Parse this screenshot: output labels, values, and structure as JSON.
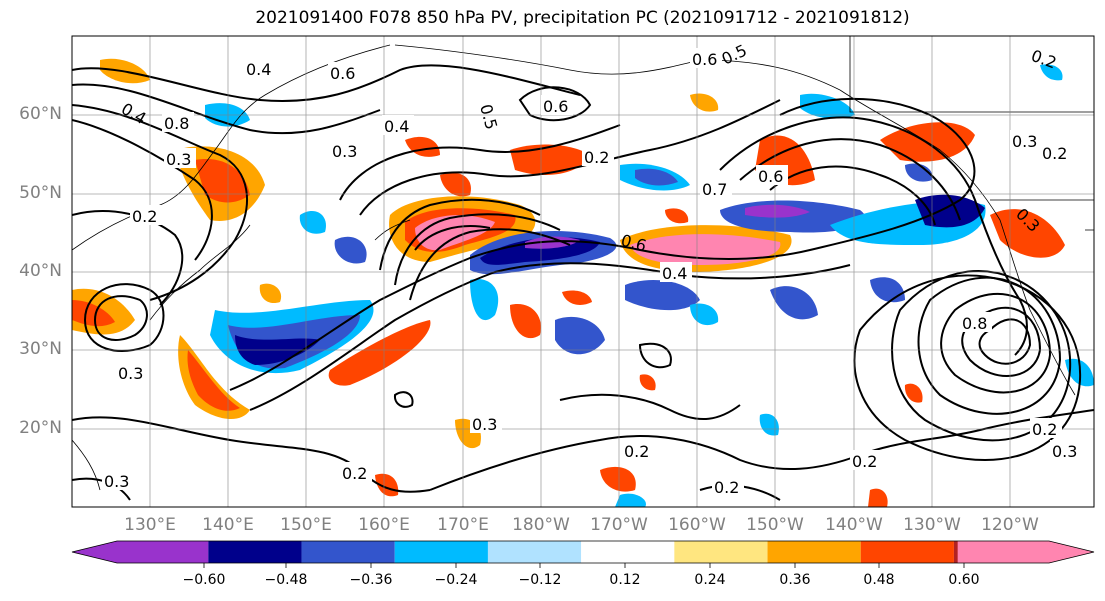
{
  "title": "2021091400 F078 850 hPa PV, precipitation PC (2021091712 - 2021091812)",
  "lat_labels": [
    "60°N",
    "50°N",
    "40°N",
    "30°N",
    "20°N"
  ],
  "lon_labels": [
    "130°E",
    "140°E",
    "150°E",
    "160°E",
    "170°E",
    "180°W",
    "170°W",
    "160°W",
    "150°W",
    "140°W",
    "130°W",
    "120°W"
  ],
  "colorbar": {
    "ticks": [
      "−0.60",
      "−0.48",
      "−0.36",
      "−0.24",
      "−0.12",
      "0.12",
      "0.24",
      "0.36",
      "0.48",
      "0.60"
    ],
    "colors": [
      "#9933cc",
      "#00008b",
      "#3355cc",
      "#00bbff",
      "#b0e2ff",
      "#ffffff",
      "#ffe680",
      "#ffa500",
      "#ff4500",
      "#b22222",
      "#ff85b0"
    ]
  },
  "contour_labels": [
    "0.4",
    "0.6",
    "0.8",
    "0.3",
    "0.2",
    "0.5",
    "0.6",
    "0.4",
    "0.3",
    "0.2",
    "0.6",
    "0.7",
    "0.6",
    "0.4",
    "0.3",
    "0.2",
    "0.3",
    "0.2",
    "0.8",
    "0.3",
    "0.2",
    "0.2",
    "0.2",
    "0.3",
    "0.2",
    "0.3",
    "0.4",
    "0.5",
    "0.6",
    "0.3",
    "0.2"
  ]
}
